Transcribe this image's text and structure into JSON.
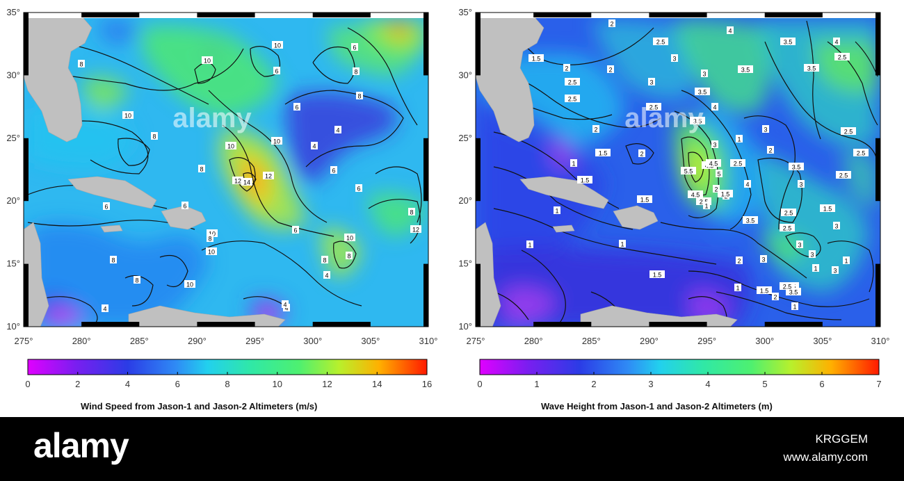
{
  "maps": [
    {
      "id": "wind",
      "x_ticks": [
        "275°",
        "280°",
        "285°",
        "290°",
        "295°",
        "300°",
        "305°",
        "310°"
      ],
      "y_ticks": [
        "10°",
        "15°",
        "20°",
        "25°",
        "30°",
        "35°"
      ],
      "colorbar_ticks": [
        "0",
        "2",
        "4",
        "6",
        "8",
        "10",
        "12",
        "14",
        "16"
      ],
      "colorbar_title": "Wind Speed from Jason-1 and Jason-2 Altimeters (m/s)",
      "contour_labels": [
        "4",
        "8",
        "10",
        "6",
        "8",
        "10",
        "6",
        "8",
        "10",
        "10",
        "14",
        "12",
        "12",
        "8",
        "6",
        "8",
        "10",
        "6",
        "4",
        "8",
        "10",
        "6",
        "10",
        "8",
        "8",
        "12",
        "6",
        "4",
        "6",
        "8",
        "4",
        "4",
        "10",
        "6",
        "8",
        "10",
        "4",
        "8"
      ]
    },
    {
      "id": "wave",
      "x_ticks": [
        "275°",
        "280°",
        "285°",
        "290°",
        "295°",
        "300°",
        "305°",
        "310°"
      ],
      "y_ticks": [
        "10°",
        "15°",
        "20°",
        "25°",
        "30°",
        "35°"
      ],
      "colorbar_ticks": [
        "0",
        "1",
        "2",
        "3",
        "4",
        "5",
        "6",
        "7"
      ],
      "colorbar_title": "Wave Height from Jason-1 and Jason-2 Altimeters (m)",
      "contour_labels": [
        "2",
        "2.5",
        "4",
        "3.5",
        "4",
        "1.5",
        "2",
        "2",
        "3",
        "3.5",
        "3.5",
        "2.5",
        "2.5",
        "2",
        "3",
        "3",
        "2.5",
        "1.5",
        "2",
        "2.5",
        "3.5",
        "4",
        "3.5",
        "3",
        "3",
        "2.5",
        "1",
        "1.5",
        "4.5",
        "5",
        "4.5",
        "2.5",
        "2.5",
        "1",
        "2",
        "5.5",
        "4",
        "2.5",
        "2.5",
        "3",
        "1.5",
        "2",
        "3.5",
        "4.5",
        "3.5",
        "2.5",
        "3",
        "1",
        "1",
        "2.5",
        "3",
        "2.5",
        "3",
        "1",
        "1.5",
        "1",
        "1.5",
        "2",
        "3",
        "3.5",
        "3",
        "1",
        "1",
        "1",
        "1.5",
        "2",
        "2.5",
        "2",
        "1.5",
        "1"
      ]
    }
  ],
  "watermark": "alamy",
  "footer": {
    "brand": "alamy",
    "image_id": "KRGGEM",
    "site": "www.alamy.com"
  }
}
